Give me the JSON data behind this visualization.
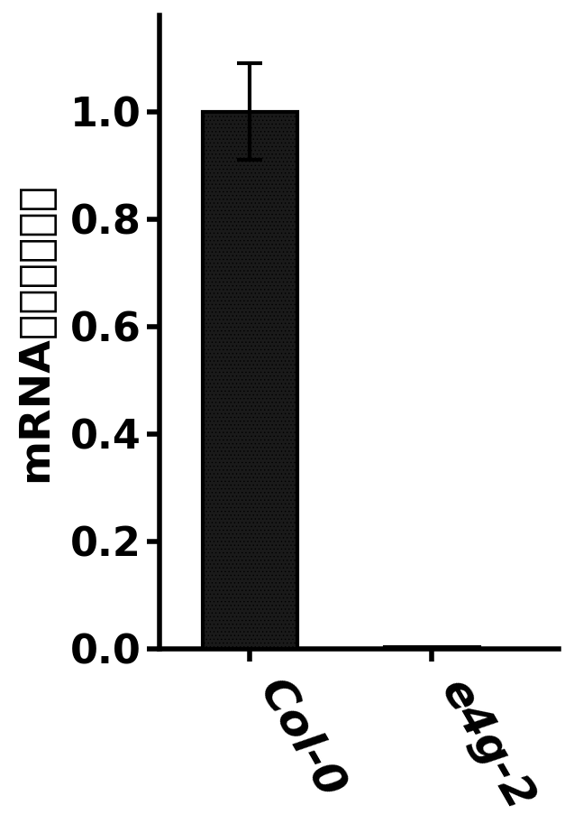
{
  "categories": [
    "Col-0",
    "e4g-2"
  ],
  "values": [
    1.0,
    0.003
  ],
  "errors": [
    0.09,
    0.0
  ],
  "bar_facecolor": "#1a1a1a",
  "bar_edgecolor": "#000000",
  "bar_hatch": "....",
  "hatch_color": "#ffffff",
  "ylabel": "mRNA相对表达水平",
  "ylim": [
    0.0,
    1.18
  ],
  "yticks": [
    0.0,
    0.2,
    0.4,
    0.6,
    0.8,
    1.0
  ],
  "yticklabels": [
    "0.0",
    "0.2",
    "0.4",
    "0.6",
    "0.8",
    "1.0"
  ],
  "bar_width": 0.52,
  "ylabel_fontsize": 34,
  "tick_fontsize": 32,
  "xtick_fontsize": 36,
  "axis_linewidth": 4.0,
  "error_capsize": 10,
  "error_linewidth": 3.0,
  "background_color": "#ffffff",
  "xlim": [
    -0.5,
    1.7
  ]
}
